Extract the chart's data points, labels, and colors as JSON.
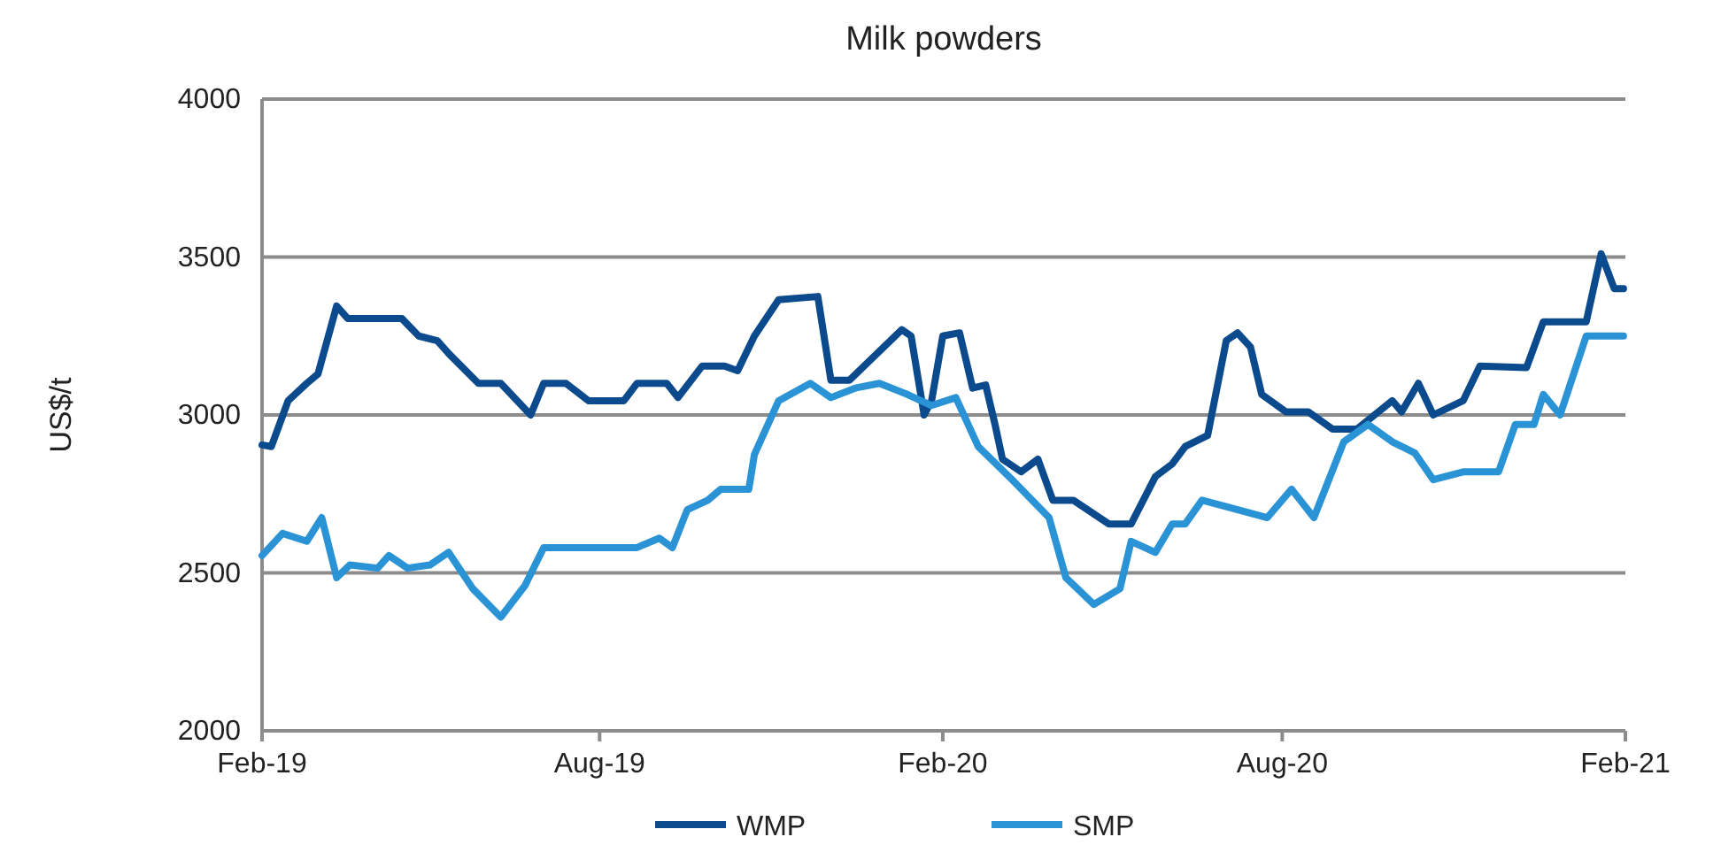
{
  "chart_data": {
    "type": "line",
    "title": "Milk powders",
    "ylabel": "US$/t",
    "xlim": [
      "2019-02-01",
      "2021-02-01"
    ],
    "xticks": [
      {
        "value": "2019-02-01",
        "label": "Feb-19"
      },
      {
        "value": "2019-08-01",
        "label": "Aug-19"
      },
      {
        "value": "2020-02-01",
        "label": "Feb-20"
      },
      {
        "value": "2020-08-01",
        "label": "Aug-20"
      },
      {
        "value": "2021-02-01",
        "label": "Feb-21"
      }
    ],
    "ylim": [
      2000,
      4000
    ],
    "yticks": [
      2000,
      2500,
      3000,
      3500,
      4000
    ],
    "grid": "y",
    "legend": "bottom",
    "line_style": "solid",
    "marker": "none",
    "series": [
      {
        "name": "WMP",
        "color": "#0b4a8c",
        "x": [
          "2019-02-01",
          "2019-02-06",
          "2019-02-15",
          "2019-02-25",
          "2019-03-03",
          "2019-03-13",
          "2019-03-19",
          "2019-04-17",
          "2019-04-26",
          "2019-05-06",
          "2019-05-12",
          "2019-05-28",
          "2019-06-09",
          "2019-06-25",
          "2019-07-02",
          "2019-07-14",
          "2019-07-26",
          "2019-08-14",
          "2019-08-21",
          "2019-09-06",
          "2019-09-12",
          "2019-09-25",
          "2019-10-07",
          "2019-10-14",
          "2019-10-23",
          "2019-11-05",
          "2019-11-26",
          "2019-12-03",
          "2019-12-13",
          "2020-01-10",
          "2020-01-15",
          "2020-01-22",
          "2020-01-26",
          "2020-02-01",
          "2020-02-10",
          "2020-02-17",
          "2020-02-24",
          "2020-02-29",
          "2020-03-04",
          "2020-03-14",
          "2020-03-23",
          "2020-03-31",
          "2020-04-11",
          "2020-04-30",
          "2020-05-12",
          "2020-05-25",
          "2020-06-03",
          "2020-06-10",
          "2020-06-22",
          "2020-07-02",
          "2020-07-08",
          "2020-07-15",
          "2020-07-21",
          "2020-08-03",
          "2020-08-15",
          "2020-08-28",
          "2020-09-10",
          "2020-09-29",
          "2020-10-04",
          "2020-10-13",
          "2020-10-21",
          "2020-11-06",
          "2020-11-15",
          "2020-12-10",
          "2020-12-19",
          "2021-01-11",
          "2021-01-19",
          "2021-01-26",
          "2021-01-31"
        ],
        "values": [
          2905,
          2900,
          3045,
          3100,
          3130,
          3345,
          3305,
          3305,
          3250,
          3235,
          3195,
          3100,
          3100,
          3000,
          3100,
          3100,
          3045,
          3045,
          3100,
          3100,
          3055,
          3155,
          3155,
          3140,
          3250,
          3365,
          3375,
          3110,
          3110,
          3270,
          3250,
          3000,
          3045,
          3250,
          3260,
          3085,
          3095,
          2970,
          2860,
          2820,
          2860,
          2730,
          2730,
          2655,
          2655,
          2805,
          2845,
          2900,
          2935,
          3235,
          3260,
          3215,
          3065,
          3010,
          3010,
          2955,
          2955,
          3045,
          3010,
          3100,
          3000,
          3045,
          3155,
          3150,
          3295,
          3295,
          3510,
          3400,
          3400
        ]
      },
      {
        "name": "SMP",
        "color": "#2a93d5",
        "x": [
          "2019-02-01",
          "2019-02-12",
          "2019-02-25",
          "2019-03-05",
          "2019-03-13",
          "2019-03-20",
          "2019-04-04",
          "2019-04-10",
          "2019-04-20",
          "2019-05-02",
          "2019-05-12",
          "2019-05-25",
          "2019-06-09",
          "2019-06-22",
          "2019-07-02",
          "2019-08-21",
          "2019-09-02",
          "2019-09-09",
          "2019-09-17",
          "2019-09-28",
          "2019-10-05",
          "2019-10-10",
          "2019-10-20",
          "2019-10-23",
          "2019-11-05",
          "2019-11-22",
          "2019-12-03",
          "2019-12-16",
          "2019-12-29",
          "2020-01-13",
          "2020-01-26",
          "2020-02-08",
          "2020-02-20",
          "2020-03-10",
          "2020-03-29",
          "2020-04-07",
          "2020-04-22",
          "2020-05-06",
          "2020-05-12",
          "2020-05-25",
          "2020-06-03",
          "2020-06-10",
          "2020-06-19",
          "2020-07-02",
          "2020-07-24",
          "2020-08-06",
          "2020-08-18",
          "2020-09-03",
          "2020-09-16",
          "2020-09-29",
          "2020-10-11",
          "2020-10-21",
          "2020-11-06",
          "2020-11-25",
          "2020-12-04",
          "2020-12-14",
          "2020-12-19",
          "2020-12-28",
          "2021-01-11",
          "2021-01-31"
        ],
        "values": [
          2555,
          2625,
          2600,
          2675,
          2485,
          2525,
          2515,
          2555,
          2515,
          2525,
          2565,
          2450,
          2360,
          2460,
          2580,
          2580,
          2610,
          2580,
          2700,
          2730,
          2765,
          2765,
          2765,
          2875,
          3045,
          3100,
          3055,
          3085,
          3100,
          3065,
          3030,
          3055,
          2900,
          2790,
          2675,
          2485,
          2400,
          2450,
          2600,
          2565,
          2655,
          2655,
          2730,
          2710,
          2675,
          2765,
          2675,
          2915,
          2970,
          2915,
          2880,
          2795,
          2820,
          2820,
          2970,
          2970,
          3065,
          3000,
          3250,
          3250
        ]
      }
    ]
  }
}
